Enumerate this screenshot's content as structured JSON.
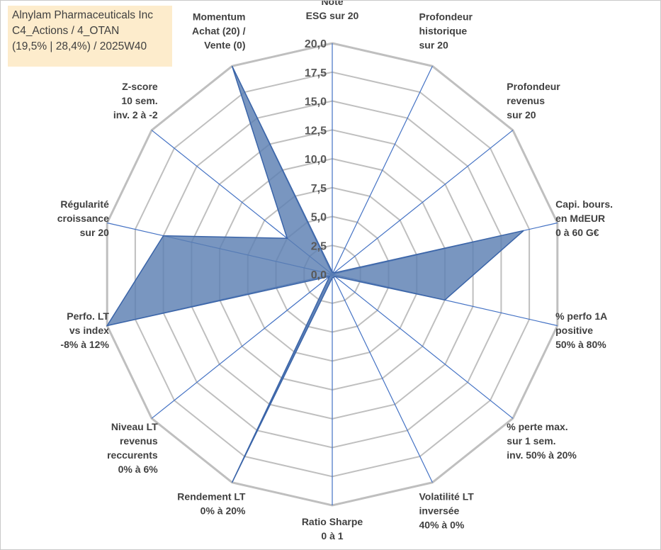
{
  "title_lines": [
    "Alnylam Pharmaceuticals Inc",
    "C4_Actions / 4_OTAN",
    "(19,5% | 28,4%) / 2025W40"
  ],
  "colors": {
    "fill": "#5b7fb2",
    "stroke": "#3a64a8",
    "spoke": "#4472c4",
    "grid": "#bfbfbf",
    "label": "#404040",
    "title_bg": "#fdeccc"
  },
  "chart_data": {
    "type": "radar",
    "title": "",
    "rmin": 0,
    "rmax": 20,
    "ticks": [
      "0,0",
      "2,5",
      "5,0",
      "7,5",
      "10,0",
      "12,5",
      "15,0",
      "17,5",
      "20,0"
    ],
    "axes": [
      {
        "label": [
          "Note",
          "ESG sur 20"
        ],
        "value": 0.2
      },
      {
        "label": [
          "Profondeur",
          "historique",
          "sur 20"
        ],
        "value": 0.2
      },
      {
        "label": [
          "Profondeur",
          "revenus",
          "sur 20"
        ],
        "value": 0.2
      },
      {
        "label": [
          "Capi. bours.",
          "en MdEUR",
          "0 à 60 G€"
        ],
        "value": 17
      },
      {
        "label": [
          "% perfo 1A",
          "positive",
          "50% à 80%"
        ],
        "value": 10
      },
      {
        "label": [
          "% perte max.",
          "sur 1 sem.",
          "inv. 50% à 20%"
        ],
        "value": 0.3
      },
      {
        "label": [
          "Volatilité LT",
          "inversée",
          "40% à 0%"
        ],
        "value": 0.3
      },
      {
        "label": [
          "Ratio Sharpe",
          "0 à 1"
        ],
        "value": 0.3
      },
      {
        "label": [
          "Rendement LT",
          "0% à 20%"
        ],
        "value": 20
      },
      {
        "label": [
          "Niveau LT",
          "revenus",
          "reccurents",
          "0% à 6%"
        ],
        "value": 0.3
      },
      {
        "label": [
          "Perfo. LT",
          "vs index",
          "-8% à 12%"
        ],
        "value": 20
      },
      {
        "label": [
          "Régularité",
          "croissance",
          "sur 20"
        ],
        "value": 15
      },
      {
        "label": [
          "Z-score",
          "10 sem.",
          "inv. 2 à -2"
        ],
        "value": 5
      },
      {
        "label": [
          "Momentum",
          "Achat (20) /",
          "Vente (0)"
        ],
        "value": 20
      }
    ],
    "series": [
      {
        "name": "Alnylam Pharmaceuticals Inc",
        "axis": "values"
      }
    ]
  }
}
